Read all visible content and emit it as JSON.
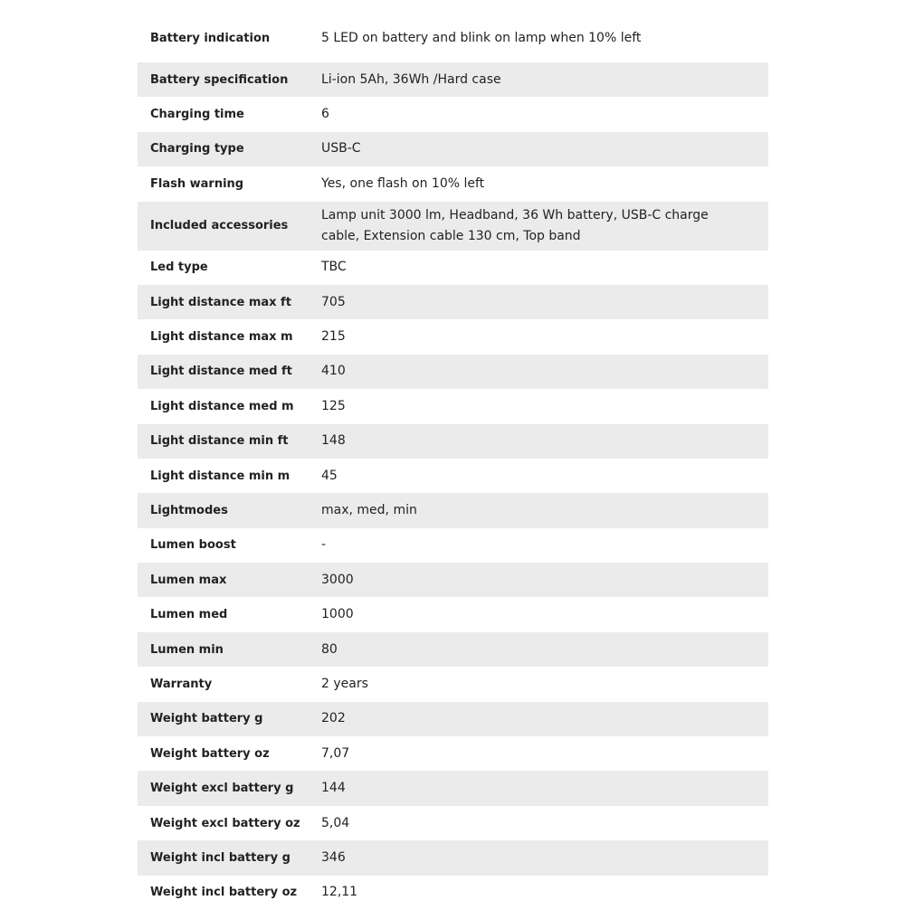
{
  "table": {
    "rows": [
      [
        "Battery indication",
        "5 LED on battery and blink on lamp when 10% left"
      ],
      [
        "Battery specification",
        "Li-ion 5Ah, 36Wh /Hard case"
      ],
      [
        "Charging time",
        "6"
      ],
      [
        "Charging type",
        "USB-C"
      ],
      [
        "Flash warning",
        "Yes, one flash on 10% left"
      ],
      [
        "Included accessories",
        "Lamp unit 3000 lm, Headband, 36 Wh battery, USB-C charge cable, Extension cable 130 cm, Top band"
      ],
      [
        "Led type",
        "TBC"
      ],
      [
        "Light distance max ft",
        "705"
      ],
      [
        "Light distance max m",
        "215"
      ],
      [
        "Light distance med ft",
        "410"
      ],
      [
        "Light distance med m",
        "125"
      ],
      [
        "Light distance min ft",
        "148"
      ],
      [
        "Light distance min m",
        "45"
      ],
      [
        "Lightmodes",
        "max, med, min"
      ],
      [
        "Lumen boost",
        "-"
      ],
      [
        "Lumen max",
        "3000"
      ],
      [
        "Lumen med",
        "1000"
      ],
      [
        "Lumen min",
        "80"
      ],
      [
        "Warranty",
        "2 years"
      ],
      [
        "Weight battery g",
        "202"
      ],
      [
        "Weight battery oz",
        "7,07"
      ],
      [
        "Weight excl battery g",
        "144"
      ],
      [
        "Weight excl battery oz",
        "5,04"
      ],
      [
        "Weight incl battery g",
        "346"
      ],
      [
        "Weight incl battery oz",
        "12,11"
      ]
    ]
  }
}
